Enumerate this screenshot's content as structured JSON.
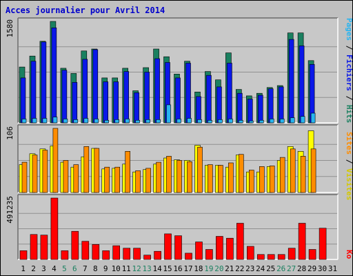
{
  "title": "Acces journalier pour Avril 2014",
  "colors": {
    "outer_bg": "#c0c0c0",
    "plot_bg": "#c8c8c8",
    "title": "#0000cc",
    "hits": "#1a8060",
    "files": "#0a18e8",
    "pages": "#28b4f0",
    "visits": "#ffff00",
    "sites": "#ff8c00",
    "kbytes": "#ff0000",
    "weekend_label": "#1a8060",
    "weekday_label": "#000000"
  },
  "legend": {
    "top": {
      "pages": "Pages",
      "sep1": " / ",
      "files": "Fichiers",
      "sep2": " / ",
      "hits": "Hits"
    },
    "middle": {
      "sites": "Sites",
      "sep": " / ",
      "visits": "Visites"
    },
    "bottom": {
      "kbytes": "Ko"
    }
  },
  "chart_data": {
    "type": "bar",
    "categories": [
      "1",
      "2",
      "3",
      "4",
      "5",
      "6",
      "7",
      "8",
      "9",
      "10",
      "11",
      "12",
      "13",
      "14",
      "15",
      "16",
      "17",
      "18",
      "19",
      "20",
      "21",
      "22",
      "23",
      "24",
      "25",
      "26",
      "27",
      "28",
      "29",
      "30",
      "31"
    ],
    "weekend_days": [
      "5",
      "6",
      "12",
      "13",
      "19",
      "20",
      "26",
      "27"
    ],
    "panels": [
      {
        "id": "top",
        "ylabel": "1580",
        "ymax": 1580,
        "series": [
          {
            "name": "Hits",
            "values": [
              870,
              1040,
              1270,
              1580,
              850,
              770,
              1120,
              1150,
              700,
              700,
              850,
              500,
              860,
              1150,
              1030,
              760,
              960,
              480,
              800,
              670,
              1090,
              520,
              420,
              460,
              550,
              580,
              1400,
              1400,
              970,
              0,
              0
            ]
          },
          {
            "name": "Fichiers",
            "values": [
              700,
              960,
              1260,
              1480,
              820,
              630,
              990,
              1140,
              640,
              640,
              800,
              470,
              790,
              1000,
              940,
              700,
              930,
              410,
              740,
              560,
              930,
              460,
              370,
              430,
              530,
              560,
              1300,
              1200,
              910,
              0,
              0
            ]
          },
          {
            "name": "Pages",
            "values": [
              60,
              70,
              70,
              90,
              60,
              50,
              70,
              60,
              40,
              50,
              60,
              40,
              50,
              50,
              280,
              60,
              70,
              50,
              40,
              50,
              60,
              40,
              30,
              40,
              60,
              60,
              80,
              100,
              150,
              0,
              0
            ]
          }
        ]
      },
      {
        "id": "middle",
        "ylabel": "106",
        "ymax": 106,
        "series": [
          {
            "name": "Visites",
            "values": [
              46,
              64,
              72,
              77,
              50,
              42,
              59,
              73,
              39,
              40,
              47,
              34,
              38,
              47,
              57,
              54,
              53,
              78,
              45,
              45,
              42,
              62,
              34,
              34,
              43,
              53,
              76,
              68,
              102,
              0,
              0
            ]
          },
          {
            "name": "Sites",
            "values": [
              50,
              62,
              70,
              106,
              53,
              46,
              76,
              73,
              42,
              42,
              68,
              36,
              40,
              50,
              60,
              53,
              51,
              75,
              46,
              45,
              49,
              63,
              37,
              43,
              44,
              58,
              72,
              60,
              72,
              0,
              0
            ]
          }
        ]
      },
      {
        "id": "bottom",
        "ylabel": "491235",
        "ymax": 491235,
        "series": [
          {
            "name": "Ko",
            "values": [
              70000,
              200000,
              195000,
              491235,
              70000,
              225000,
              145000,
              120000,
              70000,
              110000,
              90000,
              90000,
              35000,
              65000,
              205000,
              190000,
              50000,
              140000,
              80000,
              185000,
              170000,
              290000,
              105000,
              40000,
              40000,
              40000,
              90000,
              290000,
              80000,
              250000,
              0
            ]
          }
        ]
      }
    ]
  }
}
